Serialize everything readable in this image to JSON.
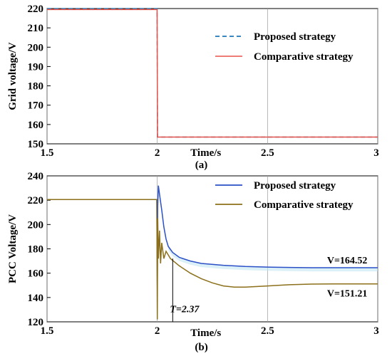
{
  "chart_data": [
    {
      "type": "line",
      "panel_label": "(a)",
      "xlabel": "Time/s",
      "ylabel": "Grid voltage/V",
      "xlim": [
        1.5,
        3
      ],
      "ylim": [
        150,
        220
      ],
      "xticks": [
        "1.5",
        "2",
        "2.5",
        "3"
      ],
      "yticks": [
        "150",
        "160",
        "170",
        "180",
        "190",
        "200",
        "210",
        "220"
      ],
      "grid": true,
      "legend_position": "top-right",
      "series": [
        {
          "name": "Proposed strategy",
          "color": "#1f77b4",
          "style": "dashed",
          "x": [
            1.5,
            1.999,
            2.001,
            3.0
          ],
          "y": [
            220,
            220,
            153.5,
            153.5
          ]
        },
        {
          "name": "Comparative strategy",
          "color": "#e8504a",
          "style": "solid",
          "x": [
            1.5,
            1.999,
            2.001,
            3.0
          ],
          "y": [
            219.5,
            219.5,
            153.5,
            153.5
          ]
        }
      ]
    },
    {
      "type": "line",
      "panel_label": "(b)",
      "xlabel": "Time/s",
      "ylabel": "PCC Voltage/V",
      "xlim": [
        1.5,
        3
      ],
      "ylim": [
        120,
        240
      ],
      "xticks": [
        "1.5",
        "2",
        "2.5",
        "3"
      ],
      "yticks": [
        "120",
        "140",
        "160",
        "180",
        "200",
        "220",
        "240"
      ],
      "grid": true,
      "legend_position": "top-right",
      "series": [
        {
          "name": "Proposed strategy",
          "color": "#2a4fc7",
          "x": [
            1.5,
            1.998,
            2.0,
            2.002,
            2.005,
            2.01,
            2.02,
            2.03,
            2.04,
            2.05,
            2.07,
            2.1,
            2.15,
            2.2,
            2.3,
            2.4,
            2.5,
            2.6,
            2.7,
            2.8,
            2.9,
            3.0
          ],
          "y": [
            220.5,
            220.5,
            150,
            215,
            232,
            225,
            212,
            198,
            188,
            182,
            177,
            173,
            170,
            168,
            166.5,
            165.5,
            165,
            164.7,
            164.5,
            164.5,
            164.5,
            164.5
          ]
        },
        {
          "name": "Comparative strategy",
          "color": "#8b6f1a",
          "x": [
            1.5,
            1.998,
            2.0,
            2.002,
            2.005,
            2.01,
            2.015,
            2.02,
            2.03,
            2.04,
            2.06,
            2.1,
            2.15,
            2.2,
            2.25,
            2.3,
            2.35,
            2.4,
            2.5,
            2.6,
            2.7,
            2.8,
            2.9,
            3.0
          ],
          "y": [
            220.5,
            220.5,
            122,
            205,
            172,
            195,
            168,
            185,
            172,
            178,
            172,
            166,
            160,
            155.5,
            152,
            149.5,
            148.5,
            148.5,
            149.5,
            150.5,
            151,
            151.2,
            151.2,
            151.2
          ]
        }
      ],
      "annotations": {
        "v_proposed": {
          "label": "V=164.52",
          "x": 2.88,
          "y": 164.52
        },
        "v_comparative": {
          "label": "V=151.21",
          "x": 2.88,
          "y": 151.21
        },
        "t_marker": {
          "label": "T=2.37",
          "x": 2.07
        }
      }
    }
  ]
}
